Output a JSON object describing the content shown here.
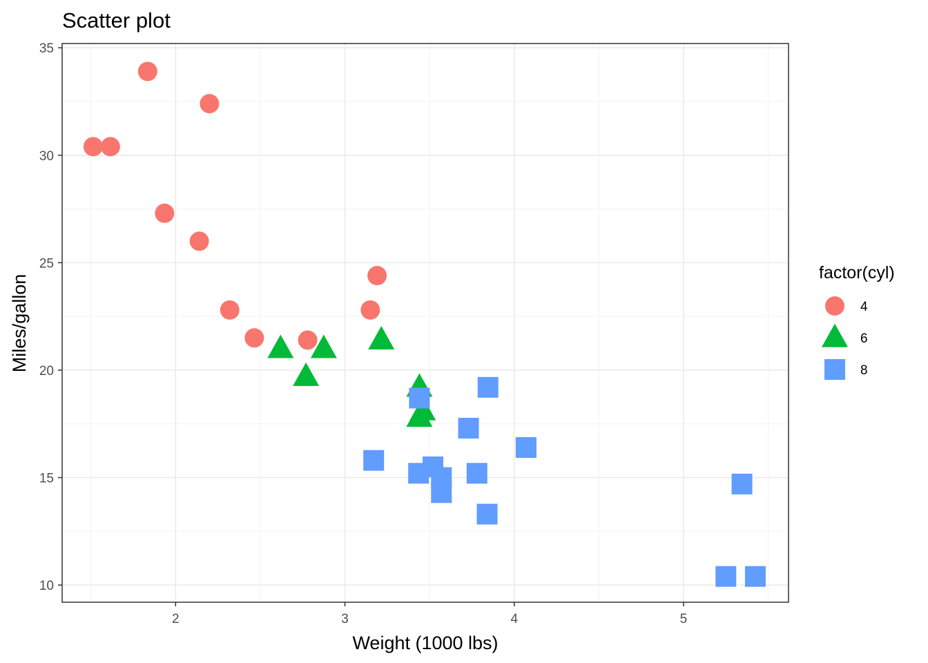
{
  "chart_data": {
    "type": "scatter",
    "title": "Scatter plot",
    "xlabel": "Weight (1000 lbs)",
    "ylabel": "Miles/gallon",
    "xlim": [
      1.33,
      5.62
    ],
    "ylim": [
      9.2,
      35.2
    ],
    "x_ticks": [
      2,
      3,
      4,
      5
    ],
    "y_ticks": [
      10,
      15,
      20,
      25,
      30,
      35
    ],
    "grid": true,
    "legend_position": "right",
    "legend_title": "factor(cyl)",
    "series": [
      {
        "name": "4",
        "shape": "circle",
        "color": "#F8766D",
        "points": [
          {
            "x": 1.513,
            "y": 30.4
          },
          {
            "x": 1.615,
            "y": 30.4
          },
          {
            "x": 1.835,
            "y": 33.9
          },
          {
            "x": 1.935,
            "y": 27.3
          },
          {
            "x": 2.14,
            "y": 26.0
          },
          {
            "x": 2.2,
            "y": 32.4
          },
          {
            "x": 2.32,
            "y": 22.8
          },
          {
            "x": 2.465,
            "y": 21.5
          },
          {
            "x": 2.78,
            "y": 21.4
          },
          {
            "x": 3.15,
            "y": 22.8
          },
          {
            "x": 3.19,
            "y": 24.4
          }
        ]
      },
      {
        "name": "6",
        "shape": "triangle",
        "color": "#00BA38",
        "points": [
          {
            "x": 2.62,
            "y": 21.0
          },
          {
            "x": 2.77,
            "y": 19.7
          },
          {
            "x": 2.875,
            "y": 21.0
          },
          {
            "x": 3.215,
            "y": 21.4
          },
          {
            "x": 3.44,
            "y": 19.2
          },
          {
            "x": 3.44,
            "y": 17.8
          },
          {
            "x": 3.46,
            "y": 18.1
          }
        ]
      },
      {
        "name": "8",
        "shape": "square",
        "color": "#619CFF",
        "points": [
          {
            "x": 3.17,
            "y": 15.8
          },
          {
            "x": 3.435,
            "y": 15.2
          },
          {
            "x": 3.44,
            "y": 18.7
          },
          {
            "x": 3.52,
            "y": 15.5
          },
          {
            "x": 3.57,
            "y": 15.0
          },
          {
            "x": 3.57,
            "y": 14.3
          },
          {
            "x": 3.73,
            "y": 17.3
          },
          {
            "x": 3.78,
            "y": 15.2
          },
          {
            "x": 3.84,
            "y": 13.3
          },
          {
            "x": 3.845,
            "y": 19.2
          },
          {
            "x": 4.07,
            "y": 16.4
          },
          {
            "x": 5.25,
            "y": 10.4
          },
          {
            "x": 5.345,
            "y": 14.7
          },
          {
            "x": 5.424,
            "y": 10.4
          }
        ]
      }
    ]
  }
}
